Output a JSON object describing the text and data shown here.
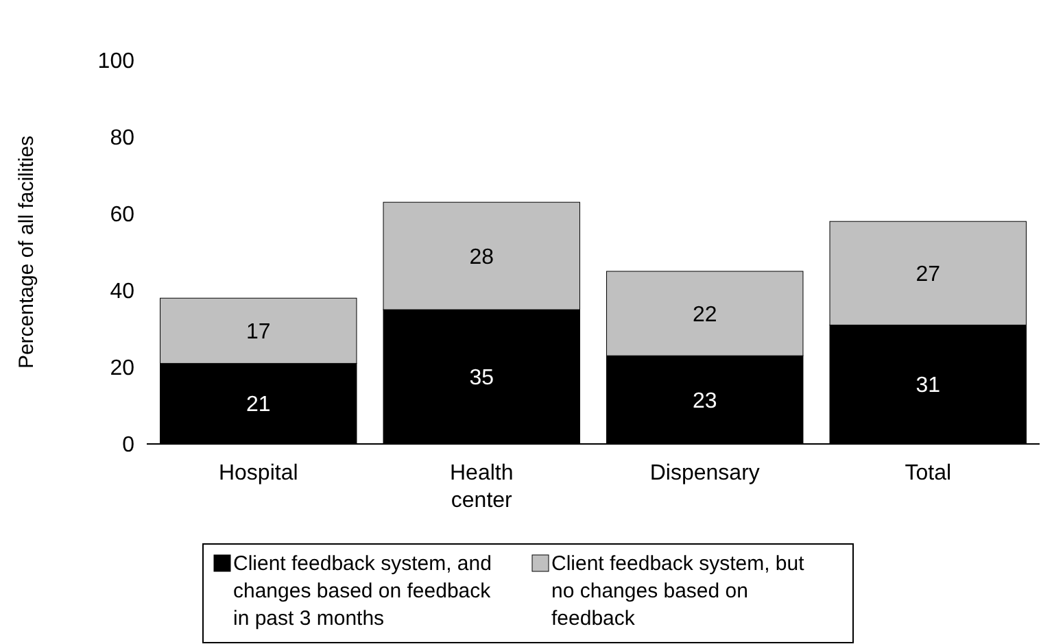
{
  "chart_data": {
    "type": "bar",
    "stacked": true,
    "ylabel": "Percentage of all facilities",
    "categories": [
      "Hospital",
      "Health center",
      "Dispensary",
      "Total"
    ],
    "series": [
      {
        "name": "Client feedback system, and changes based on feedback in past 3 months",
        "color": "#000000",
        "values": [
          21,
          35,
          23,
          31
        ]
      },
      {
        "name": "Client feedback system, but no changes based on feedback",
        "color": "#c0c0c0",
        "values": [
          17,
          28,
          22,
          27
        ]
      }
    ],
    "ylim": [
      0,
      100
    ],
    "yticks": [
      0,
      20,
      40,
      60,
      80,
      100
    ],
    "data_labels": true,
    "legend": "bottom",
    "grid": false
  }
}
